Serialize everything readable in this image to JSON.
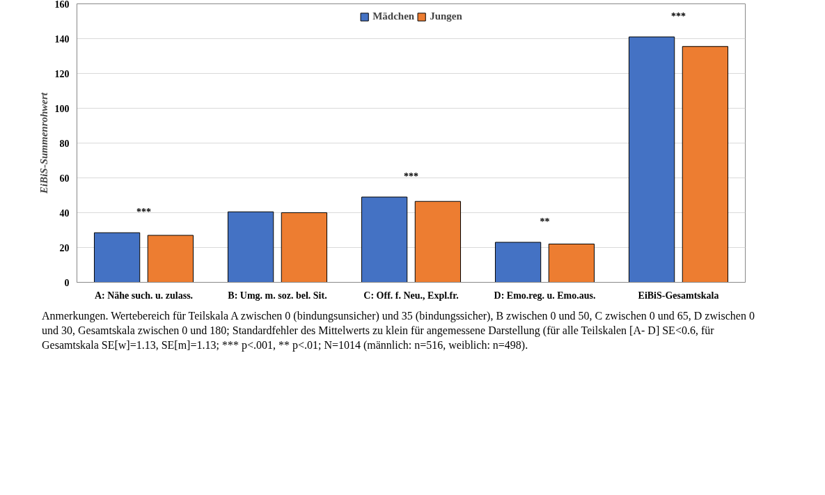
{
  "chart_data": {
    "type": "bar",
    "ylabel": "EiBiS-Summenrohwert",
    "categories": [
      "A: Nähe such. u. zulass.",
      "B: Umg. m. soz. bel. Sit.",
      "C: Off. f. Neu., Expl.fr.",
      "D: Emo.reg. u. Emo.aus.",
      "EiBiS-Gesamtskala"
    ],
    "series": [
      {
        "name": "Mädchen",
        "color": "#4472c4",
        "values": [
          28.5,
          40.5,
          49,
          23,
          141
        ],
        "value_labels": [
          "***",
          null,
          "***",
          "**",
          "***"
        ]
      },
      {
        "name": "Jungen",
        "color": "#ed7d31",
        "values": [
          27,
          40,
          46.5,
          22,
          135.5
        ]
      }
    ],
    "ylim": [
      0,
      160
    ],
    "yticks": [
      0,
      20,
      40,
      60,
      80,
      100,
      120,
      140,
      160
    ],
    "grid": "y",
    "legend": "top",
    "annotations": [
      "Anmerkungen. Wertebereich für Teilskala A zwischen 0 (bindungsunsicher) und 35 (bindungssicher), B zwischen 0 und 50, C zwischen 0 und 65, D zwischen 0 und 30, Gesamtskala zwischen 0 und 180; Standardfehler des Mittelwerts zu klein für angemessene Darstellung (für alle Teilskalen [A- D] SE<0.6, für Gesamtskala SE[w]=1.13, SE[m]=1.13; *** p<.001, ** p<.01; N=1014 (männlich: n=516, weiblich: n=498)."
    ]
  }
}
